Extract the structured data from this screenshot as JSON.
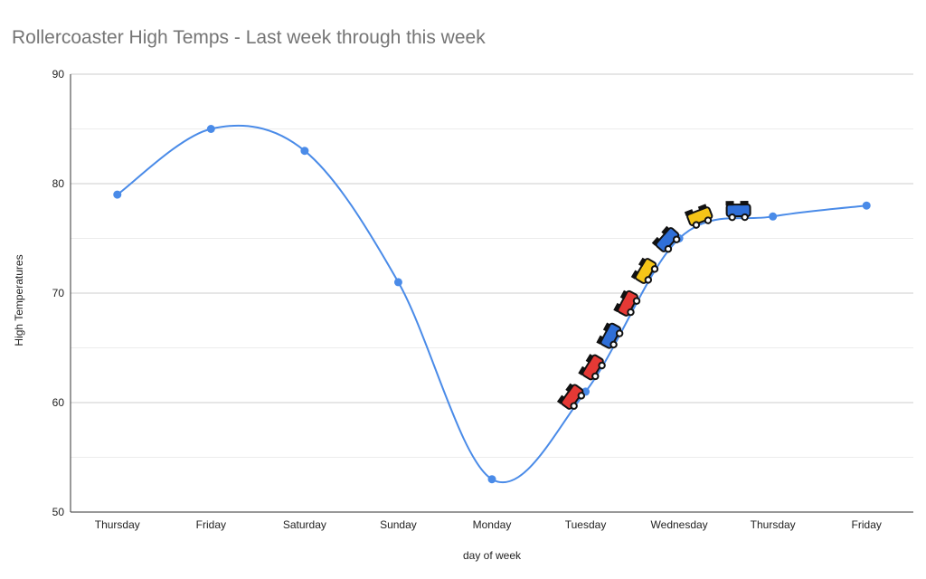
{
  "chart_data": {
    "type": "line",
    "title": "Rollercoaster High Temps - Last week through this week",
    "xlabel": "day of week",
    "ylabel": "High Temperatures",
    "categories": [
      "Thursday",
      "Friday",
      "Saturday",
      "Sunday",
      "Monday",
      "Tuesday",
      "Wednesday",
      "Thursday",
      "Friday"
    ],
    "series": [
      {
        "name": "High Temperatures",
        "values": [
          79,
          85,
          83,
          71,
          53,
          61,
          75,
          77,
          78
        ]
      }
    ],
    "ylim": [
      50,
      90
    ],
    "yticks": [
      50,
      60,
      70,
      80,
      90
    ],
    "minor_gridlines": true,
    "smooth": true,
    "line_color": "#4a8be8",
    "annotation": {
      "name": "rollercoaster-train",
      "colors": [
        "#e53935",
        "#e53935",
        "#2f6fd8",
        "#e53935",
        "#f5c518",
        "#2f6fd8",
        "#f5c518",
        "#2f6fd8"
      ]
    }
  }
}
